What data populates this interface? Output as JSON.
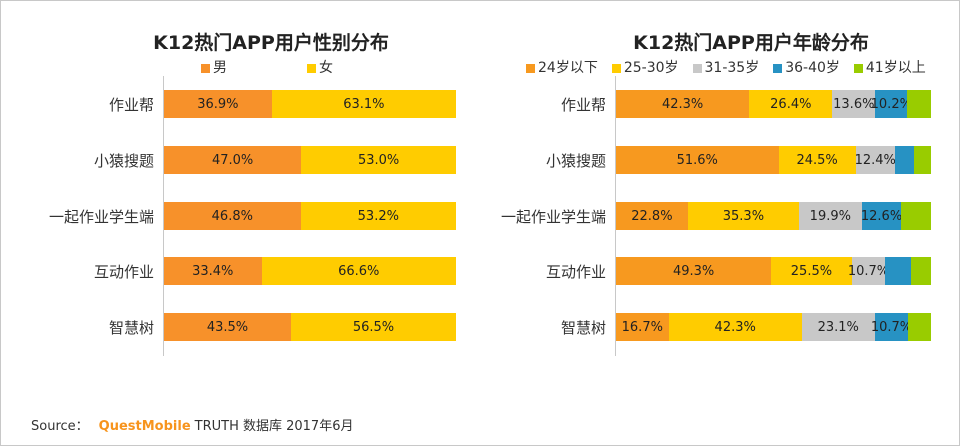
{
  "chart_data": [
    {
      "type": "bar",
      "orientation": "horizontal-stacked-100",
      "title": "K12热门APP用户性别分布",
      "categories": [
        "作业帮",
        "小猿搜题",
        "一起作业学生端",
        "互动作业",
        "智慧树"
      ],
      "series": [
        {
          "name": "男",
          "color": "#f7912a",
          "values": [
            36.9,
            47.0,
            46.8,
            33.4,
            43.5
          ],
          "labels": [
            "36.9%",
            "47.0%",
            "46.8%",
            "33.4%",
            "43.5%"
          ]
        },
        {
          "name": "女",
          "color": "#ffcc00",
          "values": [
            63.1,
            53.0,
            53.2,
            66.6,
            56.5
          ],
          "labels": [
            "63.1%",
            "53.0%",
            "53.2%",
            "66.6%",
            "56.5%"
          ]
        }
      ],
      "xlim": [
        0,
        100
      ],
      "legend": "top",
      "grid": false
    },
    {
      "type": "bar",
      "orientation": "horizontal-stacked-100",
      "title": "K12热门APP用户年龄分布",
      "categories": [
        "作业帮",
        "小猿搜题",
        "一起作业学生端",
        "互动作业",
        "智慧树"
      ],
      "series": [
        {
          "name": "24岁以下",
          "color": "#f7991f",
          "values": [
            42.3,
            51.6,
            22.8,
            49.3,
            16.7
          ],
          "labels": [
            "42.3%",
            "51.6%",
            "22.8%",
            "49.3%",
            "16.7%"
          ]
        },
        {
          "name": "25-30岁",
          "color": "#ffcc00",
          "values": [
            26.4,
            24.5,
            35.3,
            25.5,
            42.3
          ],
          "labels": [
            "26.4%",
            "24.5%",
            "35.3%",
            "25.5%",
            "42.3%"
          ]
        },
        {
          "name": "31-35岁",
          "color": "#c8c8c8",
          "values": [
            13.6,
            12.4,
            19.9,
            10.7,
            23.1
          ],
          "labels": [
            "13.6%",
            "12.4%",
            "19.9%",
            "10.7%",
            "23.1%"
          ]
        },
        {
          "name": "36-40岁",
          "color": "#2792c3",
          "values": [
            10.2,
            6.0,
            12.6,
            8.0,
            10.7
          ],
          "labels": [
            "10.2%",
            "",
            "12.6%",
            "",
            "10.7%"
          ]
        },
        {
          "name": "41岁以上",
          "color": "#99cc00",
          "values": [
            7.5,
            5.5,
            9.4,
            6.5,
            7.2
          ],
          "labels": [
            "",
            "",
            "",
            "",
            ""
          ]
        }
      ],
      "xlim": [
        0,
        100
      ],
      "legend": "top",
      "grid": false
    }
  ],
  "source": {
    "prefix": "Source：",
    "brand": "QuestMobile",
    "rest": "TRUTH 数据库 2017年6月"
  }
}
